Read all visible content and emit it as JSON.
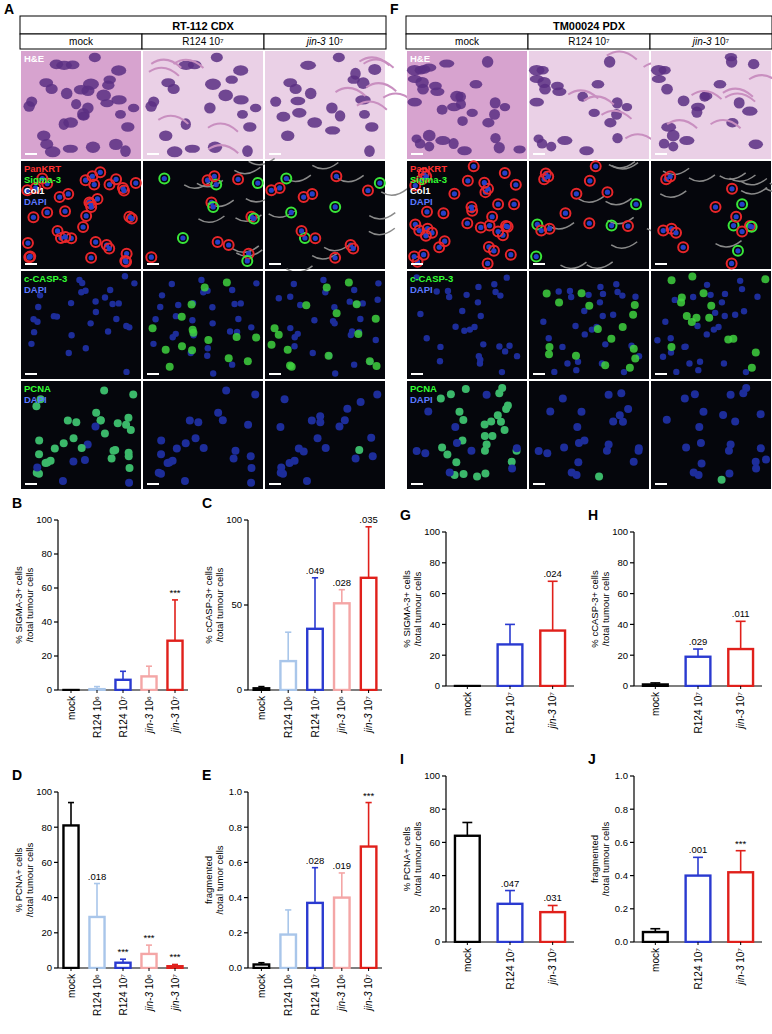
{
  "italic_terms": [
    "jin-3"
  ],
  "image_panels": [
    {
      "letter": "A",
      "title": "RT-112 CDX",
      "columns": [
        "mock",
        "R124 10⁷",
        "jin-3 10⁷"
      ],
      "rows": [
        [
          {
            "text": "H&E",
            "color": "#ffffff"
          }
        ],
        [
          {
            "text": "PanKRT",
            "color": "#ff3030"
          },
          {
            "text": "Sigma-3",
            "color": "#33ff33"
          },
          {
            "text": "Col1",
            "color": "#ffffff"
          },
          {
            "text": "DAPI",
            "color": "#5a78ff"
          }
        ],
        [
          {
            "text": "c-CASP-3",
            "color": "#33ff33"
          },
          {
            "text": "DAPI",
            "color": "#5a78ff"
          }
        ],
        [
          {
            "text": "PCNA",
            "color": "#33ff33"
          },
          {
            "text": "DAPI",
            "color": "#5a78ff"
          }
        ]
      ]
    },
    {
      "letter": "F",
      "title": "TM00024 PDX",
      "columns": [
        "mock",
        "R124 10⁷",
        "jin-3 10⁷"
      ],
      "rows": [
        [
          {
            "text": "H&E",
            "color": "#ffffff"
          }
        ],
        [
          {
            "text": "PanKRT",
            "color": "#ff3030"
          },
          {
            "text": "Sigma-3",
            "color": "#33ff33"
          },
          {
            "text": "Col1",
            "color": "#ffffff"
          },
          {
            "text": "DAPI",
            "color": "#5a78ff"
          }
        ],
        [
          {
            "text": "c-CASP-3",
            "color": "#33ff33"
          },
          {
            "text": "DAPI",
            "color": "#5a78ff"
          }
        ],
        [
          {
            "text": "PCNA",
            "color": "#33ff33"
          },
          {
            "text": "DAPI",
            "color": "#5a78ff"
          }
        ]
      ]
    }
  ],
  "chart_data": [
    {
      "type": "bar",
      "letter": "B",
      "y_label": "% SIGMA-3+ cells /total tumour cells",
      "categories": [
        "mock",
        "R124 10⁶",
        "R124 10⁷",
        "jin-3 10⁶",
        "jin-3 10⁷"
      ],
      "values": [
        0,
        0.5,
        6,
        8,
        29
      ],
      "errors": [
        0,
        1.5,
        5,
        6,
        24
      ],
      "colors": [
        "#000000",
        "#a9c6ea",
        "#2a3ad0",
        "#f4a6a6",
        "#e0201b"
      ],
      "annotations": [
        null,
        null,
        null,
        null,
        "***"
      ],
      "ylim": [
        0,
        100
      ],
      "yticks": [
        0,
        20,
        40,
        60,
        80,
        100
      ]
    },
    {
      "type": "bar",
      "letter": "C",
      "y_label": "% cCASP-3+ cells /total tumour cells",
      "categories": [
        "mock",
        "R124 10⁶",
        "R124 10⁷",
        "jin-3 10⁶",
        "jin-3 10⁷"
      ],
      "values": [
        1,
        17,
        36,
        51,
        66
      ],
      "errors": [
        1,
        17,
        30,
        8,
        30
      ],
      "colors": [
        "#000000",
        "#a9c6ea",
        "#2a3ad0",
        "#f4a6a6",
        "#e0201b"
      ],
      "annotations": [
        null,
        null,
        ".049",
        ".028",
        ".035"
      ],
      "ylim": [
        0,
        100
      ],
      "yticks": [
        0,
        50,
        100
      ]
    },
    {
      "type": "bar",
      "letter": "D",
      "y_label": "% PCNA+ cells /total tumour cells",
      "categories": [
        "mock",
        "R124 10⁶",
        "R124 10⁷",
        "jin-3 10⁶",
        "jin-3 10⁷"
      ],
      "values": [
        81,
        29,
        3,
        8,
        1
      ],
      "errors": [
        13,
        19,
        2,
        5,
        1
      ],
      "colors": [
        "#000000",
        "#a9c6ea",
        "#2a3ad0",
        "#f4a6a6",
        "#e0201b"
      ],
      "annotations": [
        null,
        ".018",
        "***",
        "***",
        "***"
      ],
      "ylim": [
        0,
        100
      ],
      "yticks": [
        0,
        20,
        40,
        60,
        80,
        100
      ]
    },
    {
      "type": "bar",
      "letter": "E",
      "y_label": "fragmented/total tumor cells",
      "categories": [
        "mock",
        "R124 10⁶",
        "R124 10⁷",
        "jin-3 10⁶",
        "jin-3 10⁷"
      ],
      "values": [
        0.02,
        0.19,
        0.37,
        0.4,
        0.69
      ],
      "errors": [
        0.01,
        0.14,
        0.2,
        0.14,
        0.25
      ],
      "colors": [
        "#000000",
        "#a9c6ea",
        "#2a3ad0",
        "#f4a6a6",
        "#e0201b"
      ],
      "annotations": [
        null,
        null,
        ".028",
        ".019",
        "***"
      ],
      "ylim": [
        0,
        1
      ],
      "yticks": [
        {
          "value": 0,
          "label": "0.0"
        },
        {
          "value": 0.2,
          "label": "0.2"
        },
        {
          "value": 0.4,
          "label": "0.4"
        },
        {
          "value": 0.6,
          "label": "0.6"
        },
        {
          "value": 0.8,
          "label": "0.8"
        },
        {
          "value": 1,
          "label": "1.0"
        }
      ]
    },
    {
      "type": "bar",
      "letter": "G",
      "y_label": "% SIGMA-3+ cells /total tumour cells",
      "categories": [
        "mock",
        "R124 10⁷",
        "jin-3 10⁷"
      ],
      "values": [
        0,
        27,
        36
      ],
      "errors": [
        0,
        13,
        32
      ],
      "colors": [
        "#000000",
        "#2a3ad0",
        "#e0201b"
      ],
      "annotations": [
        null,
        null,
        ".024"
      ],
      "ylim": [
        0,
        100
      ],
      "yticks": [
        0,
        20,
        40,
        60,
        80,
        100
      ]
    },
    {
      "type": "bar",
      "letter": "H",
      "y_label": "% cCASP-3+ cells /total tumour cells",
      "categories": [
        "mock",
        "R124 10⁷",
        "jin-3 10⁷"
      ],
      "values": [
        1,
        19,
        24
      ],
      "errors": [
        1,
        5,
        18
      ],
      "colors": [
        "#000000",
        "#2a3ad0",
        "#e0201b"
      ],
      "annotations": [
        null,
        ".029",
        ".011"
      ],
      "ylim": [
        0,
        100
      ],
      "yticks": [
        0,
        20,
        40,
        60,
        80,
        100
      ]
    },
    {
      "type": "bar",
      "letter": "I",
      "y_label": "% PCNA+ cells /total tumour cells",
      "categories": [
        "mock",
        "R124 10⁷",
        "jin-3 10⁷"
      ],
      "values": [
        64,
        23,
        18
      ],
      "errors": [
        8,
        8,
        4
      ],
      "colors": [
        "#000000",
        "#2a3ad0",
        "#e0201b"
      ],
      "annotations": [
        null,
        ".047",
        ".031"
      ],
      "ylim": [
        0,
        100
      ],
      "yticks": [
        0,
        20,
        40,
        60,
        80,
        100
      ]
    },
    {
      "type": "bar",
      "letter": "J",
      "y_label": "fragmented /total tumour cells",
      "categories": [
        "mock",
        "R124 10⁷",
        "jin-3 10⁷"
      ],
      "values": [
        0.06,
        0.4,
        0.42
      ],
      "errors": [
        0.02,
        0.11,
        0.13
      ],
      "colors": [
        "#000000",
        "#2a3ad0",
        "#e0201b"
      ],
      "annotations": [
        null,
        ".001",
        "***"
      ],
      "ylim": [
        0,
        1
      ],
      "yticks": [
        {
          "value": 0,
          "label": "0.0"
        },
        {
          "value": 0.2,
          "label": "0.2"
        },
        {
          "value": 0.4,
          "label": "0.4"
        },
        {
          "value": 0.6,
          "label": "0.6"
        },
        {
          "value": 0.8,
          "label": "0.8"
        },
        {
          "value": 1,
          "label": "1.0"
        }
      ]
    }
  ]
}
